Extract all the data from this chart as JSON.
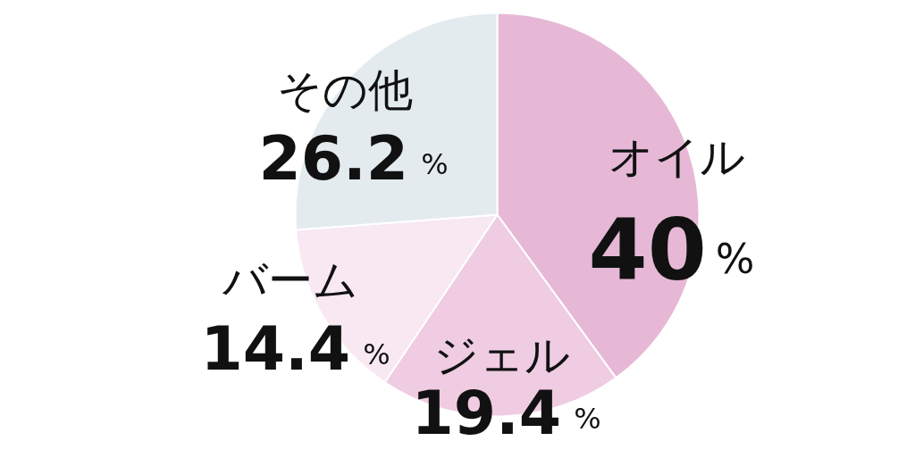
{
  "chart_data": {
    "type": "pie",
    "categories": [
      "オイル",
      "ジェル",
      "バーム",
      "その他"
    ],
    "values": [
      40,
      19.4,
      14.4,
      26.2
    ],
    "colors": [
      "#e6b8d6",
      "#efcce2",
      "#f8e8f2",
      "#e3ebef"
    ],
    "value_labels": [
      "40%",
      "19.4%",
      "14.4%",
      "26.2%"
    ]
  }
}
